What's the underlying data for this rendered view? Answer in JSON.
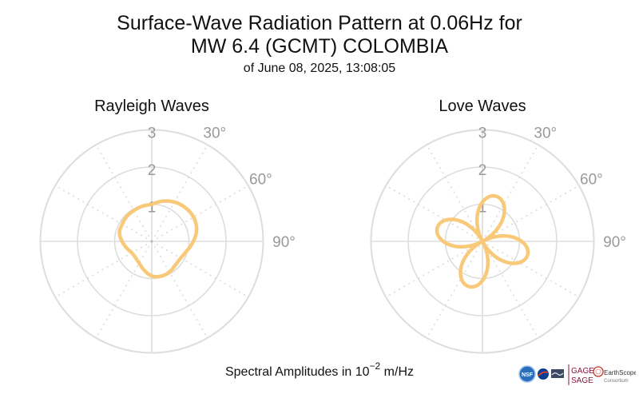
{
  "header": {
    "title_line1": "Surface-Wave Radiation Pattern at 0.06Hz for",
    "title_line2": "MW 6.4 (GCMT) COLOMBIA",
    "subtitle": "of June 08, 2025, 13:08:05"
  },
  "footer": {
    "caption_prefix": "Spectral Amplitudes in 10",
    "caption_exponent": "−2",
    "caption_suffix": " m/Hz"
  },
  "logos": {
    "nsf": "NSF",
    "gage": "GAGE",
    "sage": "SAGE",
    "earthscope": "EarthScope",
    "earthscope_sub": "Consortium"
  },
  "colors": {
    "pattern": "#f9c97a",
    "grid": "#dddddd",
    "tick": "#999999"
  },
  "chart_data": [
    {
      "type": "polar-line",
      "title": "Rayleigh Waves",
      "r_ticks": [
        "1",
        "2",
        "3"
      ],
      "angle_ticks": [
        "30°",
        "60°",
        "90°"
      ],
      "r_max": 3,
      "direction": "clockwise",
      "zero_location": "top",
      "theta_deg": [
        0,
        15,
        30,
        45,
        60,
        75,
        90,
        105,
        120,
        135,
        150,
        165,
        180,
        195,
        210,
        225,
        240,
        255,
        270,
        285,
        300,
        315,
        330,
        345
      ],
      "r": [
        1.0,
        1.12,
        1.22,
        1.28,
        1.3,
        1.25,
        1.12,
        0.98,
        0.9,
        0.9,
        0.95,
        0.97,
        0.93,
        0.8,
        0.68,
        0.62,
        0.62,
        0.7,
        0.8,
        0.9,
        0.92,
        0.95,
        0.96,
        0.98
      ]
    },
    {
      "type": "polar-line",
      "title": "Love Waves",
      "r_ticks": [
        "1",
        "2",
        "3"
      ],
      "angle_ticks": [
        "30°",
        "60°",
        "90°"
      ],
      "r_max": 3,
      "direction": "clockwise",
      "zero_location": "top",
      "pattern_model": {
        "form": "four-lobe",
        "lobe_peak": 1.25,
        "lobe_azimuths_deg": [
          0,
          90,
          180,
          270
        ],
        "rotation_deg": 17,
        "base": 0.02
      }
    }
  ]
}
